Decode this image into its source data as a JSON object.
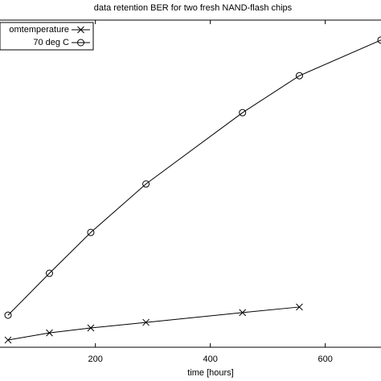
{
  "chart_data": {
    "type": "line",
    "title": "data retention BER for two fresh NAND-flash chips",
    "x_label": "time [hours]",
    "xlim": [
      34,
      697
    ],
    "xticks": [
      200,
      400,
      600
    ],
    "ylim": [
      0,
      100
    ],
    "legend": "upper left",
    "series": [
      {
        "name": "omtemperature",
        "color": "#000000",
        "marker": "x",
        "x": [
          48,
          120,
          192,
          288,
          456,
          555
        ],
        "values": [
          2.2,
          4.4,
          5.9,
          7.6,
          10.6,
          12.3
        ]
      },
      {
        "name": "70 deg C",
        "color": "#000000",
        "marker": "o",
        "x": [
          48,
          120,
          192,
          288,
          456,
          555,
          697
        ],
        "values": [
          9.8,
          22.6,
          35.1,
          49.9,
          71.7,
          83.0,
          93.9
        ]
      }
    ]
  }
}
